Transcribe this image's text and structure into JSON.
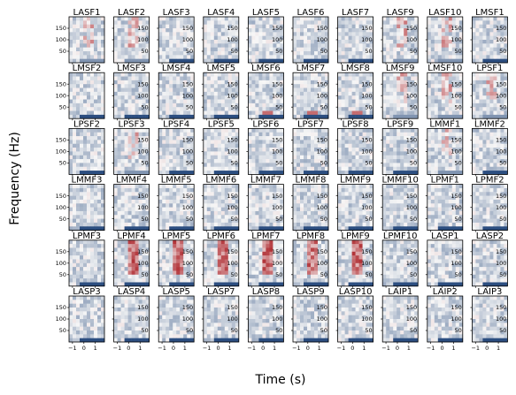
{
  "chart_data": {
    "type": "heatmap",
    "xlabel": "Time (s)",
    "ylabel": "Frequency (Hz)",
    "xlim": [
      -1.3,
      1.8
    ],
    "ylim": [
      0,
      200
    ],
    "x_ticks": [
      -1,
      0,
      1
    ],
    "y_ticks": [
      50,
      100,
      150
    ],
    "x_tick_labels": [
      "−1",
      "0",
      "1"
    ],
    "y_tick_labels": [
      "50",
      "100",
      "150"
    ],
    "colormap": "RdBu_r",
    "colors": {
      "positive": "#a50f15",
      "neutral": "#f7f7f7",
      "negative": "#08306b"
    },
    "grid": {
      "rows": 6,
      "cols": 10
    },
    "panels": [
      {
        "title": "LASF1",
        "power": "mixed"
      },
      {
        "title": "LASF2",
        "power": "mixed"
      },
      {
        "title": "LASF3",
        "power": "low"
      },
      {
        "title": "LASF4",
        "power": "low"
      },
      {
        "title": "LASF5",
        "power": "low"
      },
      {
        "title": "LASF6",
        "power": "low"
      },
      {
        "title": "LASF7",
        "power": "low"
      },
      {
        "title": "LASF9",
        "power": "mixed"
      },
      {
        "title": "LASF10",
        "power": "mixed"
      },
      {
        "title": "LMSF1",
        "power": "low"
      },
      {
        "title": "LMSF2",
        "power": "low"
      },
      {
        "title": "LMSF3",
        "power": "low"
      },
      {
        "title": "LMSF4",
        "power": "low"
      },
      {
        "title": "LMSF5",
        "power": "low"
      },
      {
        "title": "LMSF6",
        "power": "low-band"
      },
      {
        "title": "LMSF7",
        "power": "low-band"
      },
      {
        "title": "LMSF8",
        "power": "low-band"
      },
      {
        "title": "LMSF9",
        "power": "mixed"
      },
      {
        "title": "LMSF10",
        "power": "mixed"
      },
      {
        "title": "LPSF1",
        "power": "mixed"
      },
      {
        "title": "LPSF2",
        "power": "low"
      },
      {
        "title": "LPSF3",
        "power": "mixed"
      },
      {
        "title": "LPSF4",
        "power": "low"
      },
      {
        "title": "LPSF5",
        "power": "low"
      },
      {
        "title": "LPSF6",
        "power": "low"
      },
      {
        "title": "LPSF7",
        "power": "low"
      },
      {
        "title": "LPSF8",
        "power": "low"
      },
      {
        "title": "LPSF9",
        "power": "low"
      },
      {
        "title": "LMMF1",
        "power": "mixed"
      },
      {
        "title": "LMMF2",
        "power": "low"
      },
      {
        "title": "LMMF3",
        "power": "low"
      },
      {
        "title": "LMMF4",
        "power": "low"
      },
      {
        "title": "LMMF5",
        "power": "low"
      },
      {
        "title": "LMMF6",
        "power": "low"
      },
      {
        "title": "LMMF7",
        "power": "low"
      },
      {
        "title": "LMMF8",
        "power": "low"
      },
      {
        "title": "LMMF9",
        "power": "low"
      },
      {
        "title": "LMMF10",
        "power": "low"
      },
      {
        "title": "LPMF1",
        "power": "low"
      },
      {
        "title": "LPMF2",
        "power": "low"
      },
      {
        "title": "LPMF3",
        "power": "low"
      },
      {
        "title": "LPMF4",
        "power": "high"
      },
      {
        "title": "LPMF5",
        "power": "high"
      },
      {
        "title": "LPMF6",
        "power": "high"
      },
      {
        "title": "LPMF7",
        "power": "high"
      },
      {
        "title": "LPMF8",
        "power": "high"
      },
      {
        "title": "LPMF9",
        "power": "high"
      },
      {
        "title": "LPMF10",
        "power": "low"
      },
      {
        "title": "LASP1",
        "power": "low"
      },
      {
        "title": "LASP2",
        "power": "low"
      },
      {
        "title": "LASP3",
        "power": "low"
      },
      {
        "title": "LASP4",
        "power": "low"
      },
      {
        "title": "LASP5",
        "power": "low"
      },
      {
        "title": "LASP7",
        "power": "low"
      },
      {
        "title": "LASP8",
        "power": "low"
      },
      {
        "title": "LASP9",
        "power": "low"
      },
      {
        "title": "LASP10",
        "power": "low"
      },
      {
        "title": "LAIP1",
        "power": "low"
      },
      {
        "title": "LAIP2",
        "power": "low"
      },
      {
        "title": "LAIP3",
        "power": "low"
      }
    ]
  }
}
